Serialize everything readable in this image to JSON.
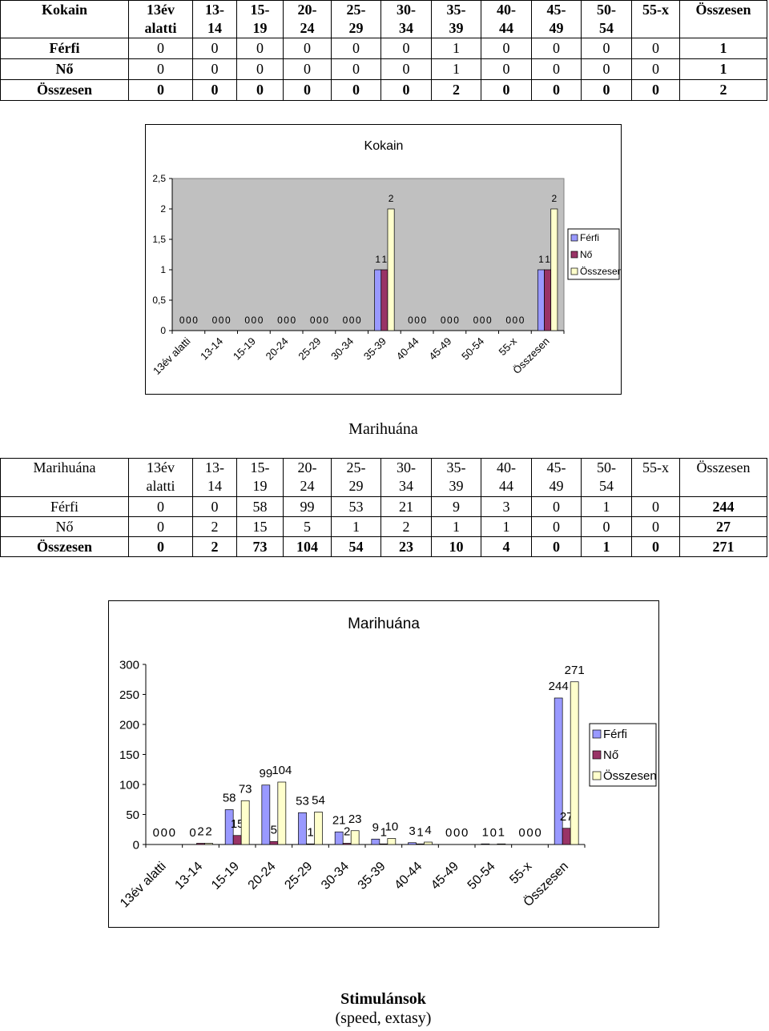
{
  "kokain_table": {
    "headers": [
      "Kokain",
      "13év alatti",
      "13-14",
      "15-19",
      "20-24",
      "25-29",
      "30-34",
      "35-39",
      "40-44",
      "45-49",
      "50-54",
      "55-x",
      "Összesen"
    ],
    "rows": [
      {
        "label": "Férfi",
        "values": [
          0,
          0,
          0,
          0,
          0,
          0,
          1,
          0,
          0,
          0,
          0,
          1
        ]
      },
      {
        "label": "Nő",
        "values": [
          0,
          0,
          0,
          0,
          0,
          0,
          1,
          0,
          0,
          0,
          0,
          1
        ]
      },
      {
        "label": "Összesen",
        "values": [
          0,
          0,
          0,
          0,
          0,
          0,
          2,
          0,
          0,
          0,
          0,
          2
        ]
      }
    ]
  },
  "marihuana_heading": "Marihuána",
  "marihuana_table": {
    "headers": [
      "Marihuána",
      "13év alatti",
      "13-14",
      "15-19",
      "20-24",
      "25-29",
      "30-34",
      "35-39",
      "40-44",
      "45-49",
      "50-54",
      "55-x",
      "Összesen"
    ],
    "rows": [
      {
        "label": "Férfi",
        "values": [
          0,
          0,
          58,
          99,
          53,
          21,
          9,
          3,
          0,
          1,
          0,
          244
        ]
      },
      {
        "label": "Nő",
        "values": [
          0,
          2,
          15,
          5,
          1,
          2,
          1,
          1,
          0,
          0,
          0,
          27
        ]
      },
      {
        "label": "Összesen",
        "values": [
          0,
          2,
          73,
          104,
          54,
          23,
          10,
          4,
          0,
          1,
          0,
          271
        ]
      }
    ]
  },
  "chart_data": [
    {
      "type": "bar",
      "title": "Kokain",
      "categories": [
        "13év alatti",
        "13-14",
        "15-19",
        "20-24",
        "25-29",
        "30-34",
        "35-39",
        "40-44",
        "45-49",
        "50-54",
        "55-x",
        "Összesen"
      ],
      "series": [
        {
          "name": "Férfi",
          "color": "#9999ff",
          "values": [
            0,
            0,
            0,
            0,
            0,
            0,
            1,
            0,
            0,
            0,
            0,
            1
          ]
        },
        {
          "name": "Nő",
          "color": "#993366",
          "values": [
            0,
            0,
            0,
            0,
            0,
            0,
            1,
            0,
            0,
            0,
            0,
            1
          ]
        },
        {
          "name": "Összesen",
          "color": "#ffffcc",
          "values": [
            0,
            0,
            0,
            0,
            0,
            0,
            2,
            0,
            0,
            0,
            0,
            2
          ]
        }
      ],
      "ylim": [
        0,
        2.5
      ],
      "yticks": [
        0,
        0.5,
        1,
        1.5,
        2,
        2.5
      ],
      "ytick_labels": [
        "0",
        "0,5",
        "1",
        "1,5",
        "2",
        "2,5"
      ],
      "legend": "right",
      "grid": false,
      "plot_background": "#c0c0c0"
    },
    {
      "type": "bar",
      "title": "Marihuána",
      "categories": [
        "13év alatti",
        "13-14",
        "15-19",
        "20-24",
        "25-29",
        "30-34",
        "35-39",
        "40-44",
        "45-49",
        "50-54",
        "55-x",
        "Összesen"
      ],
      "series": [
        {
          "name": "Férfi",
          "color": "#9999ff",
          "values": [
            0,
            0,
            58,
            99,
            53,
            21,
            9,
            3,
            0,
            1,
            0,
            244
          ]
        },
        {
          "name": "Nő",
          "color": "#993366",
          "values": [
            0,
            2,
            15,
            5,
            1,
            2,
            1,
            1,
            0,
            0,
            0,
            27
          ]
        },
        {
          "name": "Összesen",
          "color": "#ffffcc",
          "values": [
            0,
            2,
            73,
            104,
            54,
            23,
            10,
            4,
            0,
            1,
            0,
            271
          ]
        }
      ],
      "ylim": [
        0,
        300
      ],
      "yticks": [
        0,
        50,
        100,
        150,
        200,
        250,
        300
      ],
      "ytick_labels": [
        "0",
        "50",
        "100",
        "150",
        "200",
        "250",
        "300"
      ],
      "legend": "right",
      "grid": false,
      "plot_background": "#ffffff"
    }
  ],
  "footer": {
    "title": "Stimulánsok",
    "subtitle": "(speed, extasy)"
  }
}
